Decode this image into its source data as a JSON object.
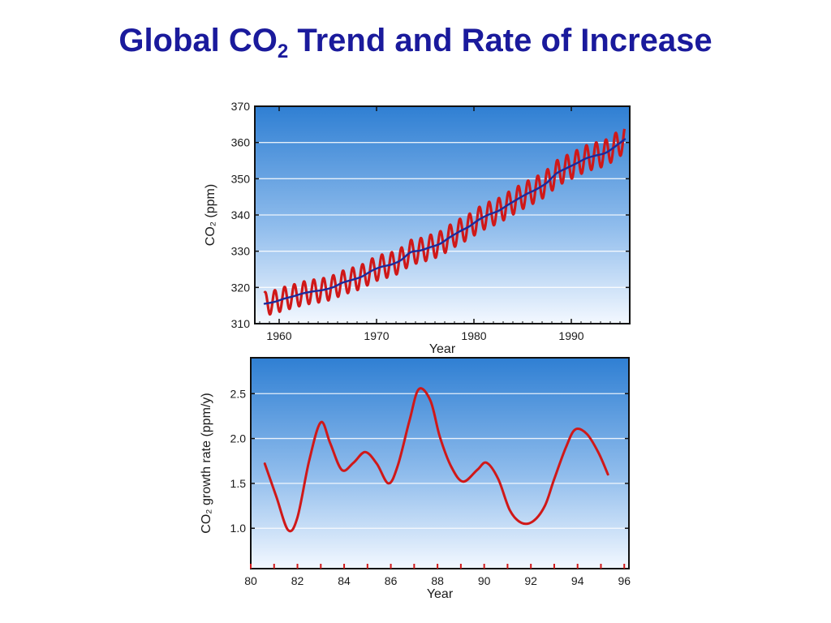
{
  "slide": {
    "title_main": "Global CO",
    "title_sub": "2",
    "title_rest": " Trend and Rate of Increase"
  },
  "chart_data": [
    {
      "type": "line",
      "xlabel": "Year",
      "ylabel": "CO₂ (ppm)",
      "xlim": [
        1957.5,
        1996
      ],
      "ylim": [
        310,
        370
      ],
      "xticks": [
        1960,
        1970,
        1980,
        1990
      ],
      "yticks": [
        310,
        320,
        330,
        340,
        350,
        360,
        370
      ],
      "grid": true,
      "series": [
        {
          "type": "line",
          "color": "#d01818",
          "x": [
            1958.5,
            1959.5,
            1960.5,
            1961.5,
            1962.5,
            1963.5,
            1964.5,
            1965.5,
            1966.5,
            1967.5,
            1968.5,
            1969.5,
            1970.5,
            1971.5,
            1972.5,
            1973.5,
            1974.5,
            1975.5,
            1976.5,
            1977.5,
            1978.5,
            1979.5,
            1980.5,
            1981.5,
            1982.5,
            1983.5,
            1984.5,
            1985.5,
            1986.5,
            1987.5,
            1988.5,
            1989.5,
            1990.5,
            1991.5,
            1992.5,
            1993.5,
            1994.5,
            1995.5
          ],
          "y": [
            315.5,
            316.0,
            316.9,
            317.6,
            318.4,
            318.9,
            319.3,
            320.0,
            321.3,
            322.1,
            323.0,
            324.6,
            325.7,
            326.3,
            327.5,
            329.7,
            330.2,
            331.1,
            332.0,
            333.8,
            335.4,
            336.8,
            338.7,
            340.1,
            341.1,
            342.8,
            344.4,
            345.9,
            347.2,
            348.9,
            351.5,
            352.9,
            354.2,
            355.6,
            356.4,
            357.1,
            358.9,
            360.9
          ],
          "seasonal_amplitude": 3.2
        },
        {
          "type": "line",
          "color": "#1c2a9c",
          "x": [
            1958.5,
            1959.5,
            1960.5,
            1961.5,
            1962.5,
            1963.5,
            1964.5,
            1965.5,
            1966.5,
            1967.5,
            1968.5,
            1969.5,
            1970.5,
            1971.5,
            1972.5,
            1973.5,
            1974.5,
            1975.5,
            1976.5,
            1977.5,
            1978.5,
            1979.5,
            1980.5,
            1981.5,
            1982.5,
            1983.5,
            1984.5,
            1985.5,
            1986.5,
            1987.5,
            1988.5,
            1989.5,
            1990.5,
            1991.5,
            1992.5,
            1993.5,
            1994.5,
            1995.5
          ],
          "y": [
            315.5,
            316.0,
            316.9,
            317.6,
            318.4,
            318.9,
            319.3,
            320.0,
            321.3,
            322.1,
            323.0,
            324.6,
            325.7,
            326.3,
            327.5,
            329.7,
            330.2,
            331.1,
            332.0,
            333.8,
            335.4,
            336.8,
            338.7,
            340.1,
            341.1,
            342.8,
            344.4,
            345.9,
            347.2,
            348.9,
            351.5,
            352.9,
            354.2,
            355.6,
            356.4,
            357.1,
            358.9,
            360.9
          ]
        }
      ]
    },
    {
      "type": "line",
      "xlabel": "Year",
      "ylabel": "CO₂ growth rate (ppm/y)",
      "xlim": [
        80,
        96.2
      ],
      "ylim": [
        0.55,
        2.9
      ],
      "xticks": [
        80,
        82,
        84,
        86,
        88,
        90,
        92,
        94,
        96
      ],
      "xticklabels": [
        "80",
        "82",
        "84",
        "86",
        "88",
        "90",
        "92",
        "94",
        "96"
      ],
      "yticks": [
        1.0,
        1.5,
        2.0,
        2.5
      ],
      "yticklabels": [
        "1.0",
        "1.5",
        "2.0",
        "2.5"
      ],
      "grid": true,
      "series": [
        {
          "type": "line",
          "color": "#d01818",
          "x": [
            80.6,
            81.1,
            81.6,
            82.0,
            82.5,
            83.0,
            83.4,
            83.9,
            84.4,
            84.9,
            85.4,
            85.9,
            86.3,
            86.8,
            87.2,
            87.7,
            88.1,
            88.6,
            89.1,
            89.7,
            90.1,
            90.6,
            91.1,
            91.6,
            92.1,
            92.6,
            93.0,
            93.5,
            93.9,
            94.4,
            94.9,
            95.3
          ],
          "y": [
            1.72,
            1.35,
            0.98,
            1.12,
            1.75,
            2.18,
            1.95,
            1.65,
            1.73,
            1.85,
            1.72,
            1.5,
            1.7,
            2.2,
            2.55,
            2.42,
            2.02,
            1.68,
            1.52,
            1.65,
            1.73,
            1.55,
            1.2,
            1.06,
            1.08,
            1.25,
            1.55,
            1.9,
            2.1,
            2.05,
            1.84,
            1.6
          ]
        }
      ]
    }
  ]
}
